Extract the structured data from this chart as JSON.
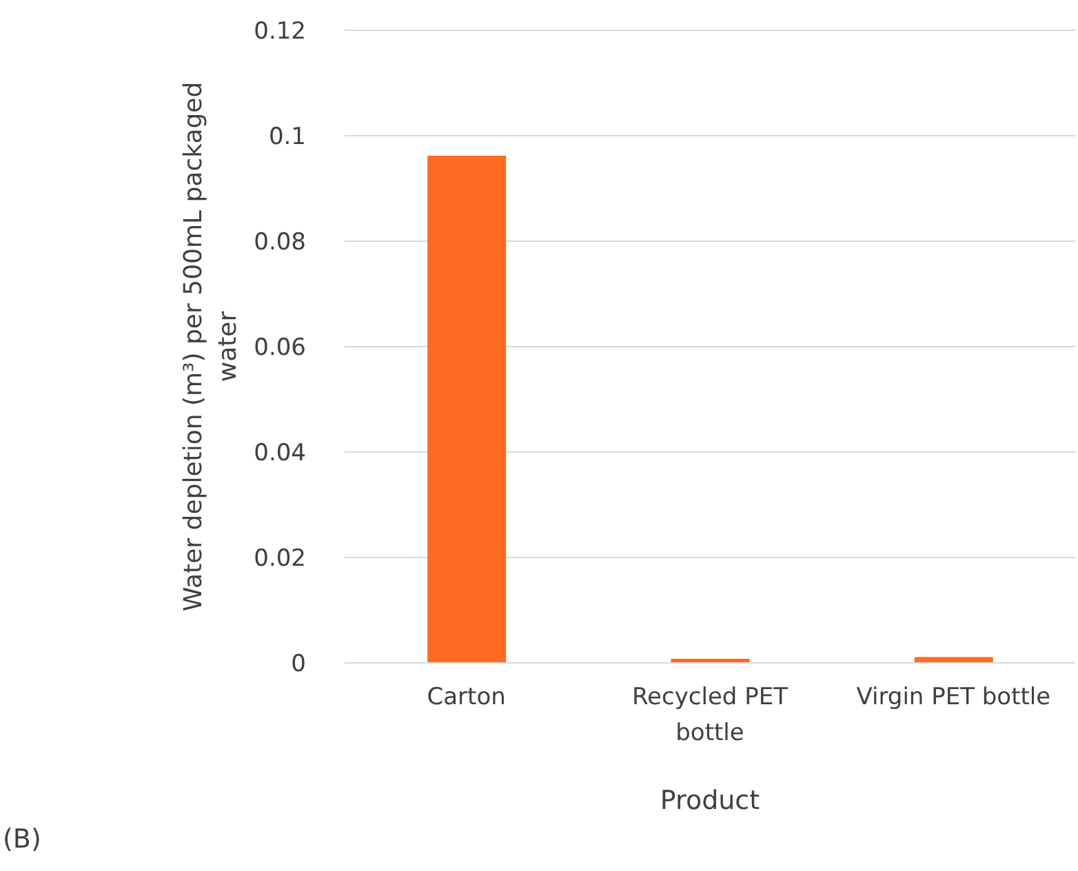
{
  "chart_data": {
    "type": "bar",
    "xlabel": "Product",
    "ylabel": "Water depletion (m³) per 500mL packaged water",
    "categories": [
      "Carton",
      "Recycled PET bottle",
      "Virgin PET bottle"
    ],
    "values": [
      0.0962,
      0.0008,
      0.0011
    ],
    "color": "#ff6b22",
    "ylim": [
      0,
      0.12
    ],
    "yticks": [
      0,
      0.02,
      0.04,
      0.06,
      0.08,
      0.1,
      0.12
    ],
    "grid": "y",
    "annotations": [
      "(B)"
    ]
  }
}
